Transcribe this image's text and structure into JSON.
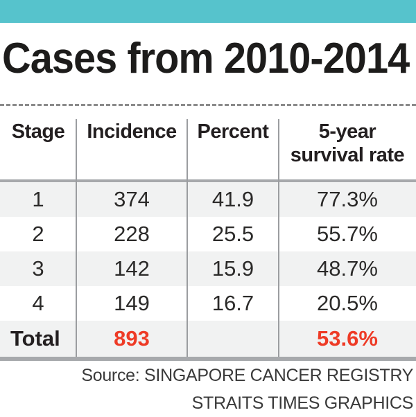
{
  "title": "Cases from 2010-2014",
  "accent_bar": {
    "color": "#56c3cc"
  },
  "table": {
    "header": {
      "stage": "Stage",
      "incidence": "Incidence",
      "percent": "Percent",
      "survival_line1": "5-year",
      "survival_line2": "survival rate"
    },
    "rows": [
      [
        "1",
        "374",
        "41.9",
        "77.3%"
      ],
      [
        "2",
        "228",
        "25.5",
        "55.7%"
      ],
      [
        "3",
        "142",
        "15.9",
        "48.7%"
      ],
      [
        "4",
        "149",
        "16.7",
        "20.5%"
      ]
    ],
    "total": [
      "Total",
      "893",
      "",
      "53.6%"
    ]
  },
  "source": {
    "line1": "Source: SINGAPORE CANCER REGISTRY",
    "line2": "STRAITS TIMES GRAPHICS"
  },
  "colors": {
    "accent_teal": "#56c3cc",
    "total_red": "#ee3b26",
    "zebra_gray": "#f1f2f2",
    "rule_gray": "#a7a9ac",
    "text_black": "#231f20"
  },
  "chart_data": {
    "type": "table",
    "title": "Cases from 2010-2014",
    "columns": [
      "Stage",
      "Incidence",
      "Percent",
      "5-year survival rate"
    ],
    "rows": [
      [
        "1",
        374,
        41.9,
        "77.3%"
      ],
      [
        "2",
        228,
        25.5,
        "55.7%"
      ],
      [
        "3",
        142,
        15.9,
        "48.7%"
      ],
      [
        "4",
        149,
        16.7,
        "20.5%"
      ],
      [
        "Total",
        893,
        null,
        "53.6%"
      ]
    ],
    "notes": "Total percent cell is blank; Total incidence and survival shown in red",
    "source": "SINGAPORE CANCER REGISTRY / STRAITS TIMES GRAPHICS"
  }
}
